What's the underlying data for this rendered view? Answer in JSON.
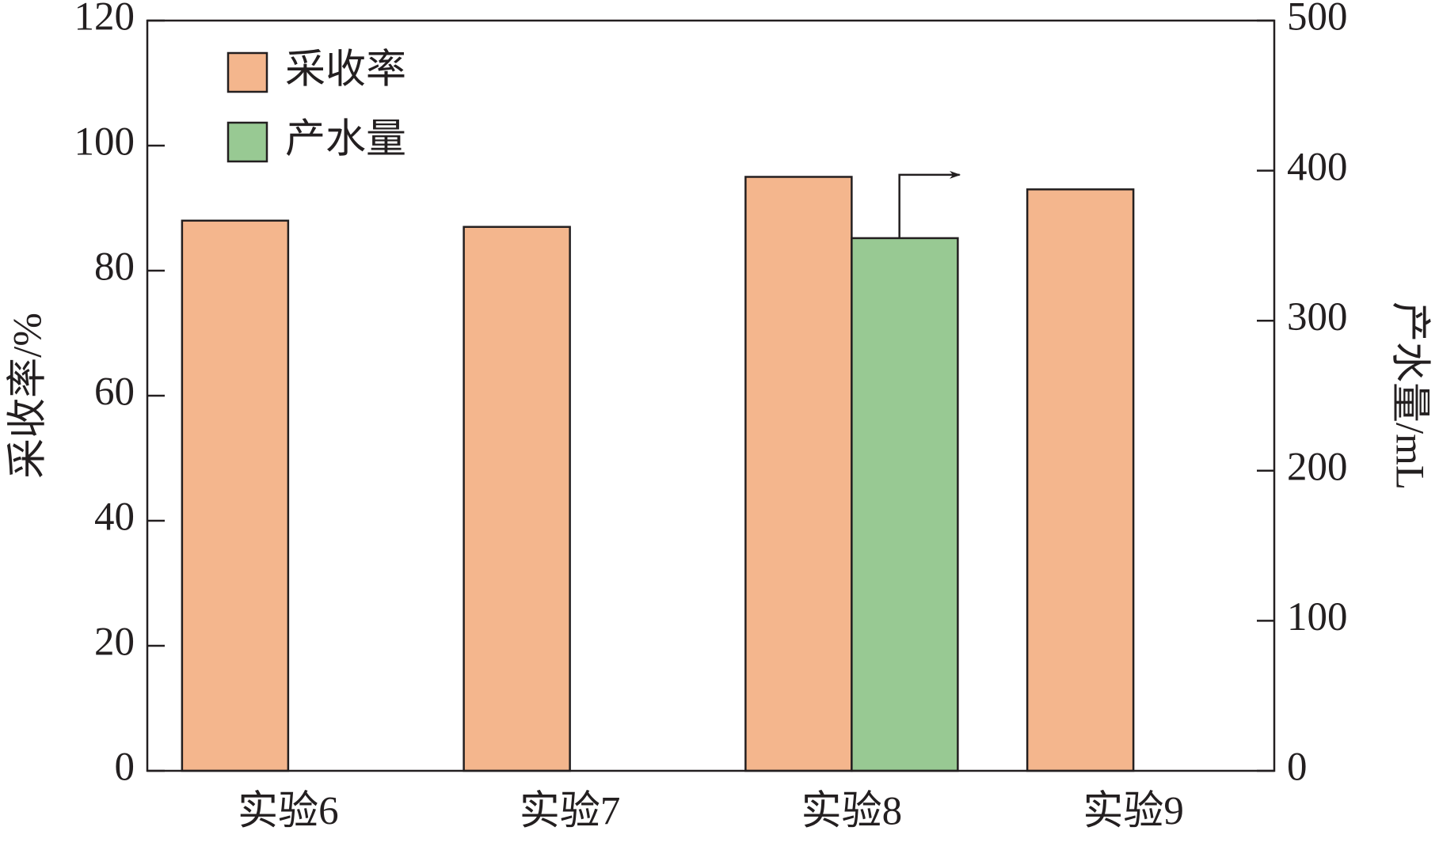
{
  "chart_data": {
    "type": "bar",
    "categories": [
      "实验6",
      "实验7",
      "实验8",
      "实验9"
    ],
    "series": [
      {
        "name": "采收率",
        "color": "#f4b68d",
        "values": [
          88,
          87,
          95,
          93
        ]
      },
      {
        "name": "产水量",
        "color": "#98c993",
        "values": [
          null,
          null,
          355,
          null
        ],
        "axis": "y2"
      }
    ],
    "ylabel": "采收率/%",
    "y2label": "产水量/mL",
    "ylim": [
      0,
      120
    ],
    "yticks": [
      0,
      20,
      40,
      60,
      80,
      100,
      120
    ],
    "y2lim": [
      0,
      500
    ],
    "y2ticks": [
      0,
      100,
      200,
      300,
      400,
      500
    ],
    "legend": "upper left"
  }
}
